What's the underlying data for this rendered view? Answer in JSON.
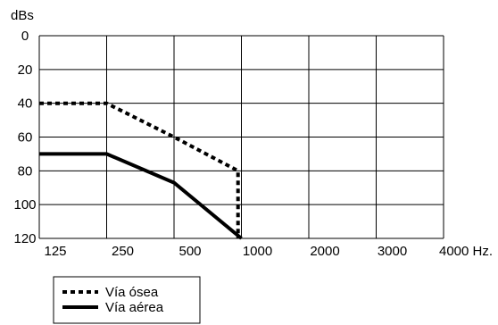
{
  "chart_data": {
    "type": "line",
    "ylabel": "dBs",
    "x_tick_labels": [
      "125",
      "250",
      "500",
      "1000",
      "2000",
      "3000",
      "4000 Hz."
    ],
    "y_tick_labels": [
      "0",
      "20",
      "40",
      "60",
      "80",
      "100",
      "120"
    ],
    "ylim": [
      0,
      120
    ],
    "y_inverted": true,
    "grid": true,
    "legend_position": "bottom-left",
    "series": [
      {
        "name": "Vía ósea",
        "style": "dotted",
        "color": "#000000",
        "points": [
          {
            "x_index": 0,
            "y": 40
          },
          {
            "x_index": 1,
            "y": 40
          },
          {
            "x_index": 2,
            "y": 60
          },
          {
            "x_index": 2.95,
            "y": 80
          },
          {
            "x_index": 2.95,
            "y": 120
          }
        ]
      },
      {
        "name": "Vía aérea",
        "style": "solid",
        "color": "#000000",
        "points": [
          {
            "x_index": 0,
            "y": 70
          },
          {
            "x_index": 1,
            "y": 70
          },
          {
            "x_index": 2,
            "y": 87
          },
          {
            "x_index": 3,
            "y": 120
          }
        ]
      }
    ]
  }
}
